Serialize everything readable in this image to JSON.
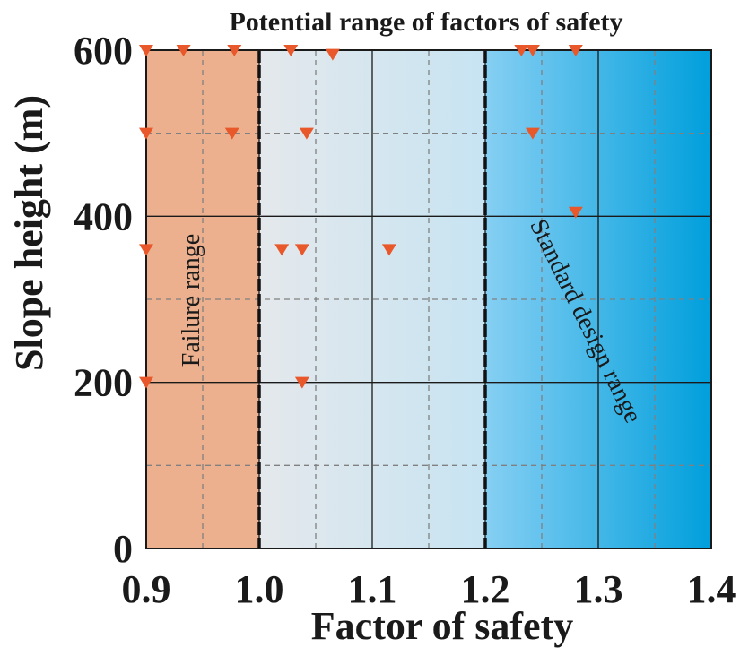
{
  "chart_data": {
    "type": "scatter",
    "title": "Potential range of factors of safety",
    "xlabel": "Factor of safety",
    "ylabel": "Slope height (m)",
    "xlim": [
      0.9,
      1.4
    ],
    "ylim": [
      0,
      600
    ],
    "xticks": [
      "0.9",
      "1.0",
      "1.1",
      "1.2",
      "1.3",
      "1.4"
    ],
    "yticks": [
      "0",
      "200",
      "400",
      "600"
    ],
    "grid": true,
    "regions": [
      {
        "label": "Failure range",
        "x_start": 0.9,
        "x_end": 1.0,
        "color": "#ecb08e"
      },
      {
        "label": "",
        "x_start": 1.0,
        "x_end": 1.2,
        "color_from": "#e4e8ec",
        "color_to": "#c7e4f2"
      },
      {
        "label": "Standard design range",
        "x_start": 1.2,
        "x_end": 1.4,
        "color_from": "#86cff3",
        "color_to": "#009fdc"
      }
    ],
    "boundaries": [
      1.0,
      1.2
    ],
    "marker_color": "#e8582a",
    "points": [
      {
        "x": 0.9,
        "y": 600
      },
      {
        "x": 0.933,
        "y": 600
      },
      {
        "x": 0.978,
        "y": 600
      },
      {
        "x": 1.028,
        "y": 600
      },
      {
        "x": 1.065,
        "y": 595
      },
      {
        "x": 1.232,
        "y": 600
      },
      {
        "x": 1.242,
        "y": 600
      },
      {
        "x": 1.28,
        "y": 600
      },
      {
        "x": 0.9,
        "y": 500
      },
      {
        "x": 0.976,
        "y": 500
      },
      {
        "x": 1.042,
        "y": 500
      },
      {
        "x": 1.242,
        "y": 500
      },
      {
        "x": 1.28,
        "y": 405
      },
      {
        "x": 0.9,
        "y": 360
      },
      {
        "x": 1.02,
        "y": 360
      },
      {
        "x": 1.038,
        "y": 360
      },
      {
        "x": 1.115,
        "y": 360
      },
      {
        "x": 0.9,
        "y": 200
      },
      {
        "x": 1.038,
        "y": 200
      }
    ]
  }
}
